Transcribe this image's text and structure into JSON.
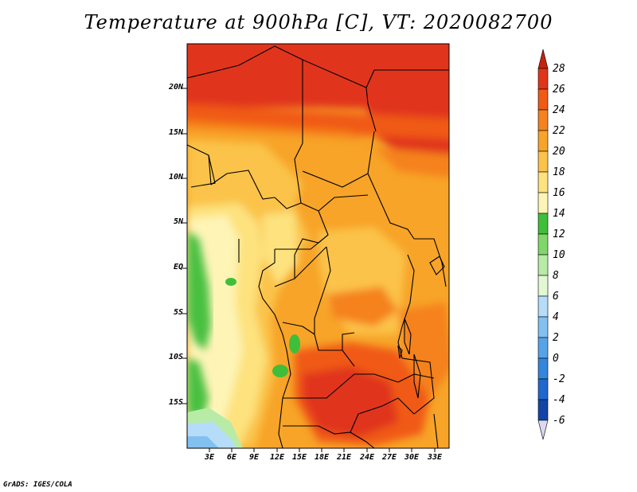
{
  "title": "Temperature at 900hPa [C], VT: 2020082700",
  "footer": "GrADS: IGES/COLA",
  "map": {
    "lat_labels": [
      "20N",
      "15N",
      "10N",
      "5N",
      "EQ",
      "5S",
      "10S",
      "15S"
    ],
    "lon_labels": [
      "3E",
      "6E",
      "9E",
      "12E",
      "15E",
      "18E",
      "21E",
      "24E",
      "27E",
      "30E",
      "33E"
    ]
  },
  "colorbar": {
    "labels": [
      "28",
      "26",
      "24",
      "22",
      "20",
      "18",
      "16",
      "14",
      "12",
      "10",
      "8",
      "6",
      "4",
      "2",
      "0",
      "-2",
      "-4",
      "-6"
    ],
    "colors": [
      "#e0351a",
      "#f05a14",
      "#f5821e",
      "#f7a428",
      "#fbc34a",
      "#fde27e",
      "#fdf4b6",
      "#3fbe3a",
      "#7fd76a",
      "#b8eba5",
      "#e2f7d4",
      "#b5dcf8",
      "#82c0f0",
      "#56a4e8",
      "#3486dc",
      "#2067ce",
      "#1244a8",
      "#0a1e7a"
    ]
  }
}
